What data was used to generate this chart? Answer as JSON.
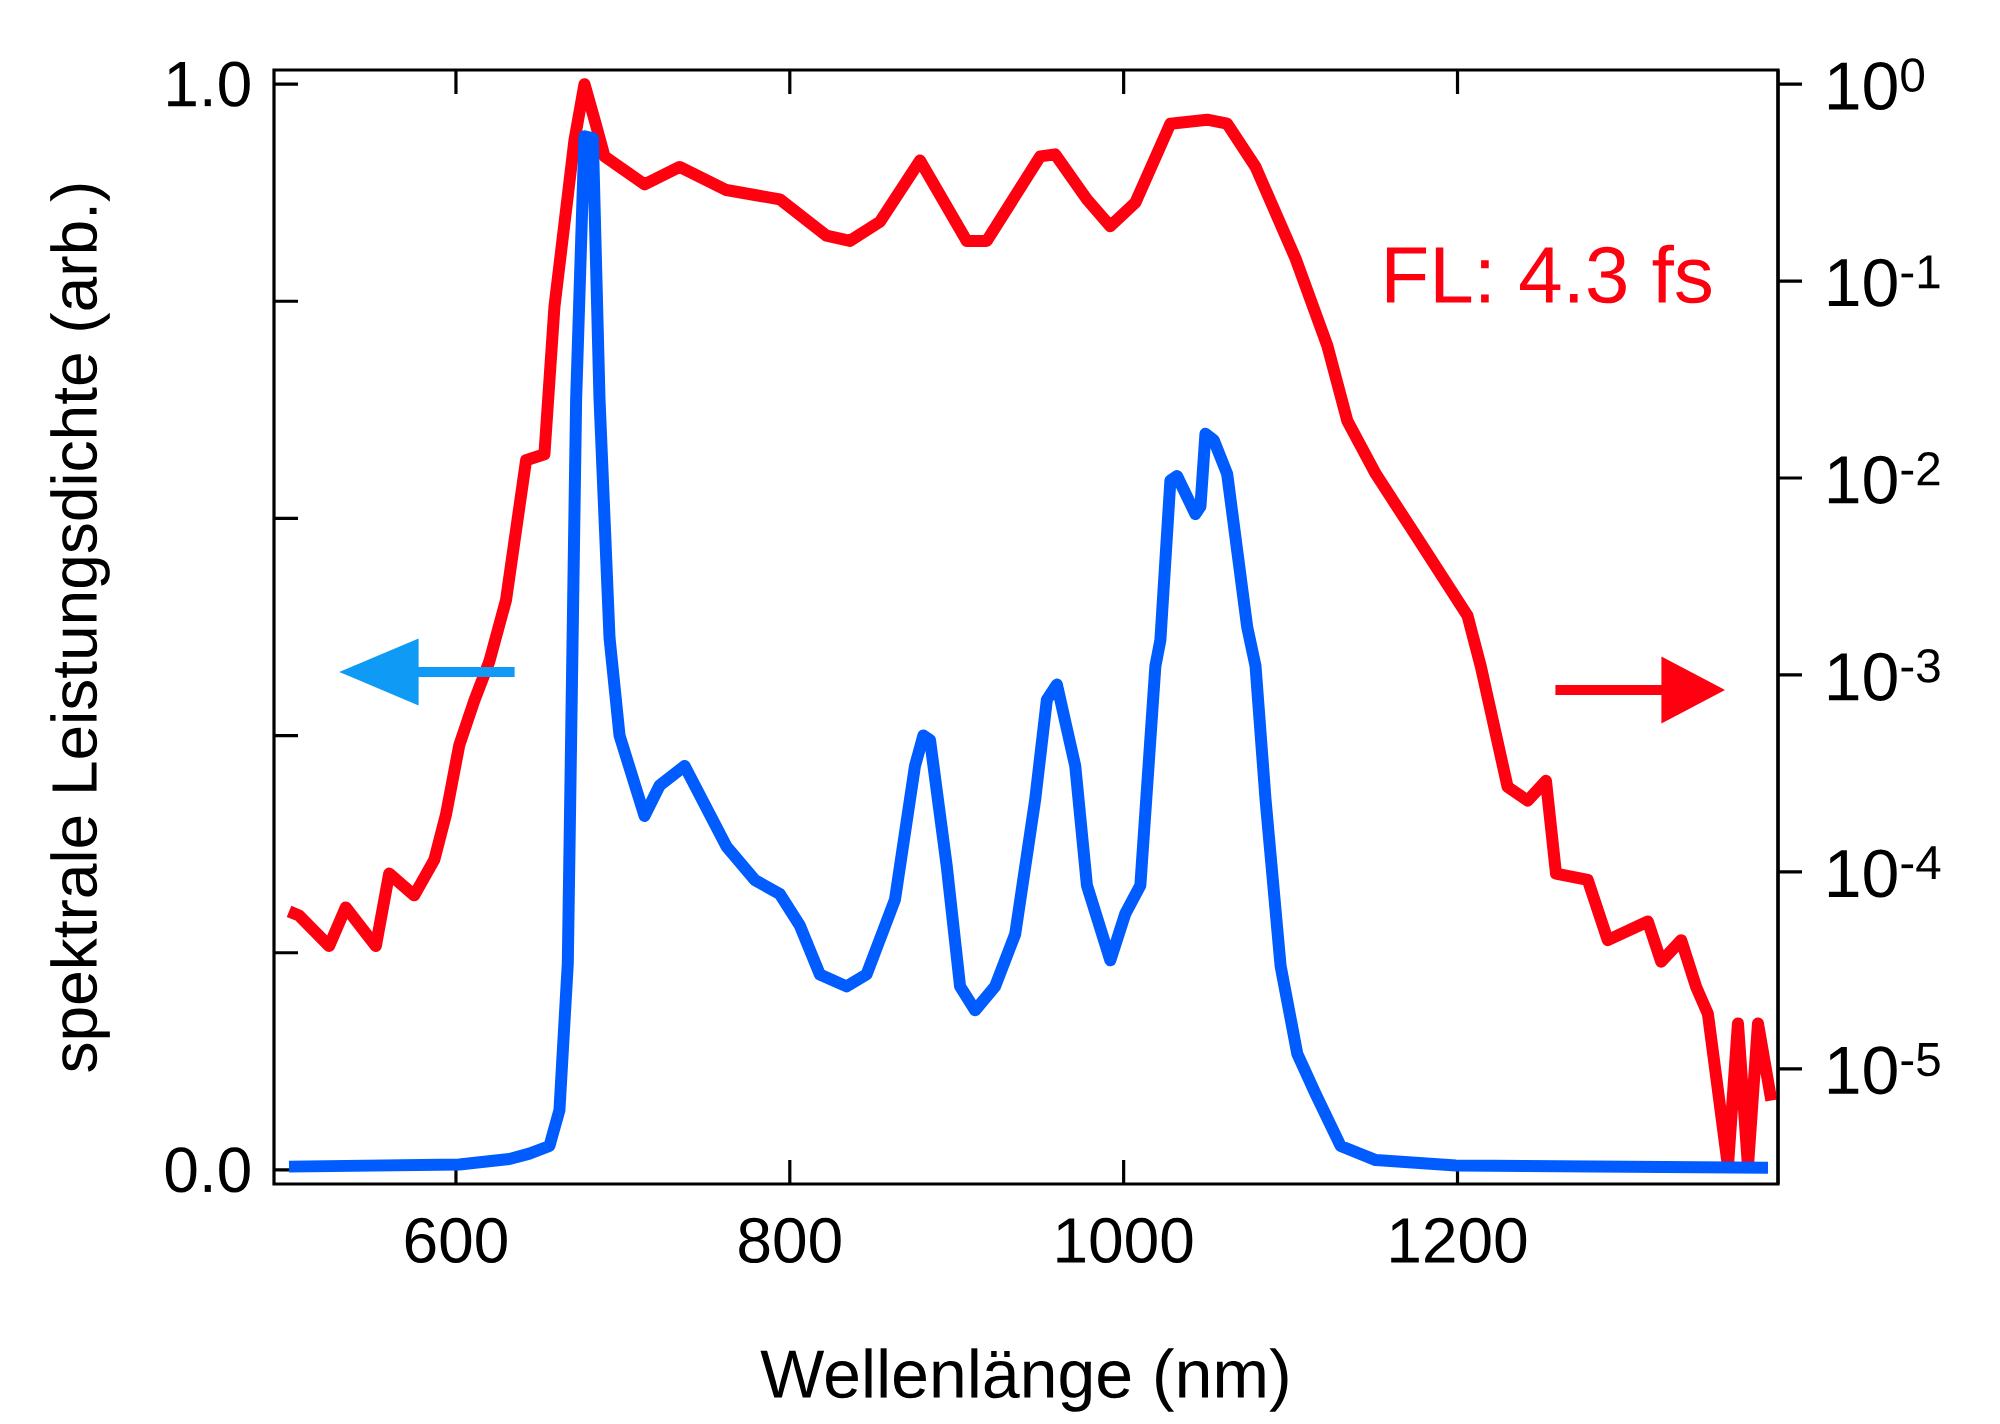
{
  "chart_data": {
    "type": "line",
    "xlabel": "Wellenlänge (nm)",
    "ylabel": "spektrale Leistungsdichte (arb.)",
    "annotations": [
      "FL: 4.3 fs"
    ],
    "log": "y2",
    "xlim": [
      491,
      1392
    ],
    "xticks": [
      600,
      800,
      1000,
      1200
    ],
    "ylim": [
      -0.013,
      1.013
    ],
    "yticks": [
      {
        "value": 0,
        "label": "0.0"
      },
      {
        "value": 0.2,
        "label": null
      },
      {
        "value": 0.4,
        "label": null
      },
      {
        "value": 0.6,
        "label": null
      },
      {
        "value": 0.8,
        "label": null
      },
      {
        "value": 1,
        "label": "1.0"
      }
    ],
    "y2lim": [
      2.6e-06,
      1.18
    ],
    "y2ticks": [
      {
        "value": 1,
        "label": "10$^{0}$"
      },
      {
        "value": 0.1,
        "label": "10$^{-1}$"
      },
      {
        "value": 0.01,
        "label": "10$^{-2}$"
      },
      {
        "value": 0.001,
        "label": "10$^{-3}$"
      },
      {
        "value": 0.0001,
        "label": "10$^{-4}$"
      },
      {
        "value": 1e-05,
        "label": "10$^{-5}$"
      }
    ],
    "series": [
      {
        "color": "#005cff",
        "axis": "y",
        "x": [
          500,
          602,
          632,
          644,
          656,
          662,
          667,
          672,
          677,
          682,
          686,
          692,
          698,
          713,
          722,
          737,
          762,
          779,
          794,
          806,
          818,
          834,
          846,
          863,
          875,
          880,
          884,
          894,
          902,
          911,
          923,
          935,
          947,
          954,
          960,
          971,
          978,
          992,
          1001,
          1010,
          1019,
          1022,
          1028,
          1032,
          1043,
          1046,
          1049,
          1054,
          1062,
          1074,
          1079,
          1085,
          1094,
          1104,
          1115,
          1130,
          1151,
          1199,
          1386
        ],
        "values": [
          0.003,
          0.005,
          0.01,
          0.015,
          0.022,
          0.055,
          0.19,
          0.71,
          0.952,
          0.95,
          0.71,
          0.49,
          0.4,
          0.326,
          0.354,
          0.372,
          0.298,
          0.267,
          0.254,
          0.225,
          0.18,
          0.169,
          0.18,
          0.249,
          0.372,
          0.4,
          0.396,
          0.28,
          0.169,
          0.147,
          0.169,
          0.217,
          0.341,
          0.433,
          0.447,
          0.372,
          0.262,
          0.193,
          0.236,
          0.262,
          0.464,
          0.488,
          0.635,
          0.639,
          0.604,
          0.611,
          0.678,
          0.672,
          0.641,
          0.5,
          0.464,
          0.341,
          0.188,
          0.107,
          0.07,
          0.022,
          0.009,
          0.004,
          0.002
        ]
      },
      {
        "color": "#ff0010",
        "axis": "y2",
        "x": [
          500,
          506,
          524,
          534,
          552,
          560,
          575,
          587,
          594,
          602,
          611,
          620,
          630,
          642,
          653,
          659,
          671,
          677,
          683,
          689,
          713,
          734,
          762,
          794,
          822,
          836,
          854,
          878,
          906,
          918,
          950,
          959,
          978,
          992,
          1007,
          1028,
          1050,
          1062,
          1079,
          1103,
          1122,
          1134,
          1151,
          1175,
          1206,
          1214,
          1230,
          1242,
          1253,
          1259,
          1278,
          1290,
          1314,
          1322,
          1334,
          1343,
          1350,
          1362,
          1368,
          1374,
          1380,
          1388
        ],
        "values": [
          6.3e-05,
          6e-05,
          4.2e-05,
          6.6e-05,
          4.2e-05,
          9.8e-05,
          7.6e-05,
          0.000115,
          0.000195,
          0.00044,
          0.00074,
          0.00117,
          0.0024,
          0.0123,
          0.0132,
          0.074,
          0.52,
          1.0,
          0.66,
          0.43,
          0.31,
          0.38,
          0.29,
          0.26,
          0.17,
          0.16,
          0.2,
          0.41,
          0.16,
          0.16,
          0.43,
          0.44,
          0.26,
          0.19,
          0.25,
          0.63,
          0.66,
          0.63,
          0.38,
          0.13,
          0.047,
          0.0195,
          0.0105,
          0.0051,
          0.002,
          0.0011,
          0.00027,
          0.00023,
          0.00029,
          9.8e-05,
          9.1e-05,
          4.5e-05,
          5.6e-05,
          3.5e-05,
          4.5e-05,
          2.6e-05,
          1.9e-05,
          3.2e-06,
          1.7e-05,
          3.2e-06,
          1.7e-05,
          6.9e-06
        ]
      }
    ]
  }
}
